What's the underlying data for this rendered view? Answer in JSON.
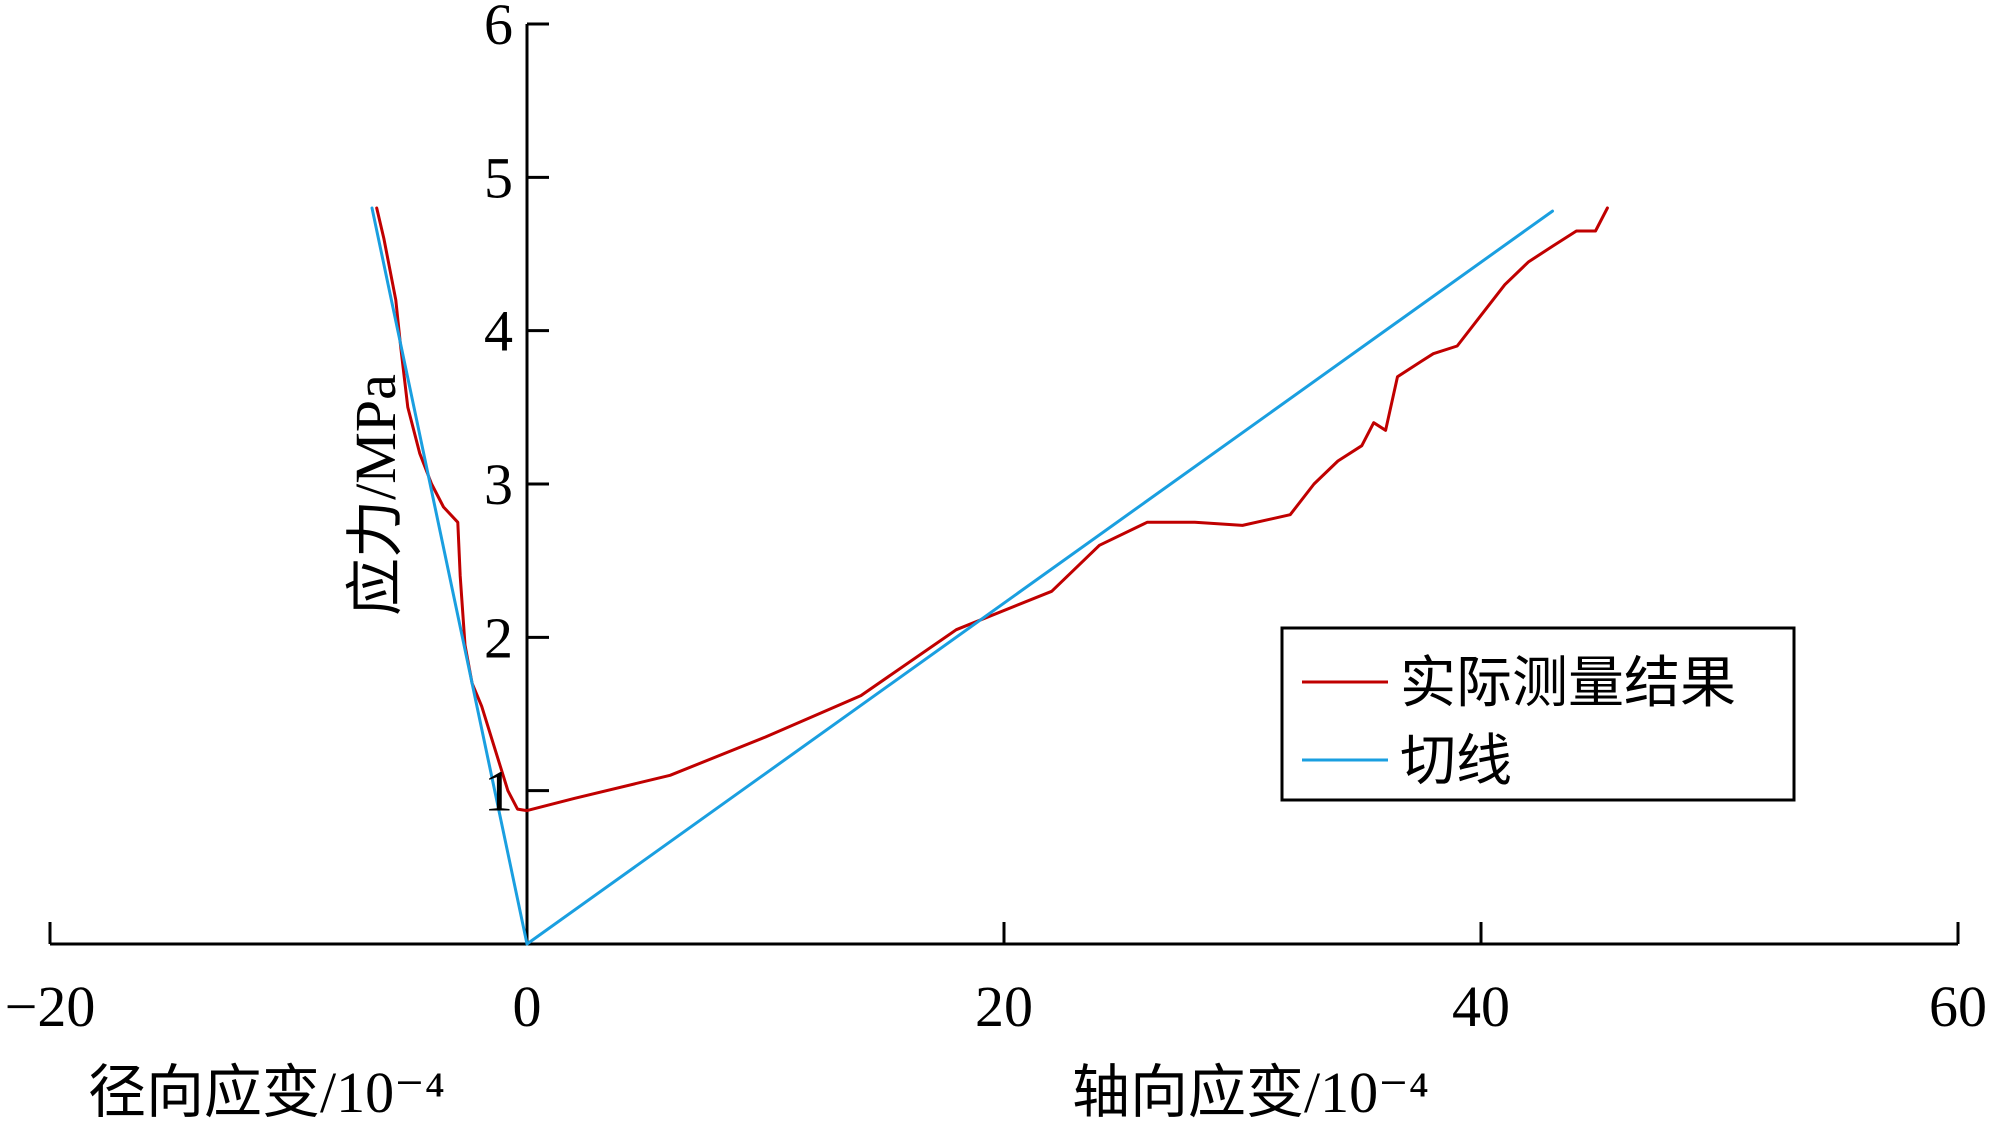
{
  "chart_data": {
    "type": "line",
    "title": "",
    "xlabel_left": "径向应变/10⁻⁴",
    "xlabel_right": "轴向应变/10⁻⁴",
    "ylabel": "应力/MPa",
    "xlim": [
      -20,
      60
    ],
    "ylim": [
      0,
      6
    ],
    "x_ticks": [
      -20,
      0,
      20,
      40,
      60
    ],
    "x_tick_labels": [
      "−20",
      "0",
      "20",
      "40",
      "60"
    ],
    "y_ticks": [
      1,
      2,
      3,
      4,
      5,
      6
    ],
    "y_tick_labels": [
      "1",
      "2",
      "3",
      "4",
      "5",
      "6"
    ],
    "grid": false,
    "legend_position": "right",
    "series": [
      {
        "name": "实际测量结果",
        "color": "#c00000",
        "segments": [
          [
            [
              -6.3,
              4.8
            ],
            [
              -6.0,
              4.6
            ],
            [
              -5.5,
              4.2
            ],
            [
              -5.3,
              3.9
            ],
            [
              -5.0,
              3.5
            ],
            [
              -4.5,
              3.2
            ],
            [
              -4.0,
              3.0
            ],
            [
              -3.5,
              2.85
            ],
            [
              -2.9,
              2.75
            ],
            [
              -2.8,
              2.4
            ],
            [
              -2.6,
              1.95
            ],
            [
              -2.3,
              1.7
            ],
            [
              -1.9,
              1.55
            ],
            [
              -1.4,
              1.3
            ],
            [
              -0.8,
              1.0
            ],
            [
              -0.4,
              0.88
            ],
            [
              0,
              0.87
            ]
          ],
          [
            [
              0,
              0.87
            ],
            [
              2,
              0.95
            ],
            [
              6,
              1.1
            ],
            [
              10,
              1.35
            ],
            [
              14,
              1.62
            ],
            [
              18,
              2.05
            ],
            [
              22,
              2.3
            ],
            [
              24,
              2.6
            ],
            [
              26,
              2.75
            ],
            [
              28,
              2.75
            ],
            [
              30,
              2.73
            ],
            [
              32,
              2.8
            ],
            [
              33,
              3.0
            ],
            [
              34,
              3.15
            ],
            [
              35,
              3.25
            ],
            [
              35.5,
              3.4
            ],
            [
              36,
              3.35
            ],
            [
              36.5,
              3.7
            ],
            [
              37.5,
              3.8
            ],
            [
              38,
              3.85
            ],
            [
              39,
              3.9
            ],
            [
              40,
              4.1
            ],
            [
              41,
              4.3
            ],
            [
              42,
              4.45
            ],
            [
              43,
              4.55
            ],
            [
              44,
              4.65
            ],
            [
              44.8,
              4.65
            ],
            [
              45.3,
              4.8
            ]
          ]
        ]
      },
      {
        "name": "切线",
        "color": "#1a9fe0",
        "segments": [
          [
            [
              -6.5,
              4.8
            ],
            [
              0,
              0
            ]
          ],
          [
            [
              0,
              0
            ],
            [
              43,
              4.78
            ]
          ]
        ]
      }
    ]
  }
}
